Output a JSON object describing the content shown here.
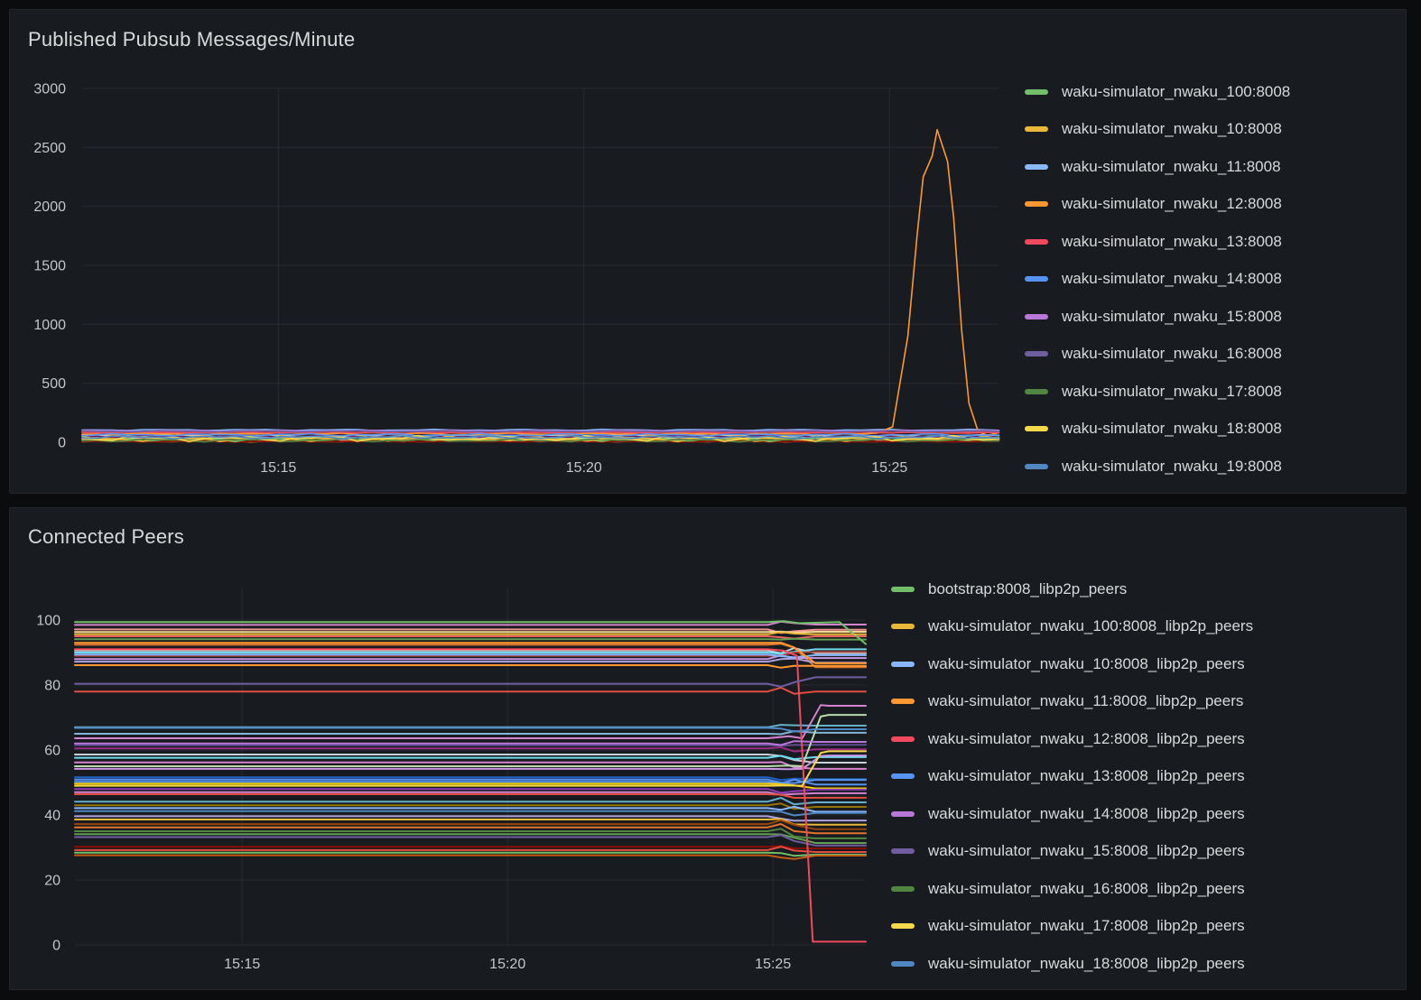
{
  "chart_data": [
    {
      "id": "published-pubsub",
      "type": "line",
      "title": "Published Pubsub Messages/Minute",
      "xlabel": "",
      "ylabel": "",
      "legend_position": "right",
      "grid": true,
      "ylim": [
        0,
        3000
      ],
      "y_ticks": [
        0,
        500,
        1000,
        1500,
        2000,
        2500,
        3000
      ],
      "x_ticks": [
        {
          "t": 15,
          "label": "15:15"
        },
        {
          "t": 20,
          "label": "15:20"
        },
        {
          "t": 25,
          "label": "15:25"
        }
      ],
      "x_range_minutes_after_1500": [
        11.79,
        26.79
      ],
      "description": "All series fluctuate in a noisy band between 0 and ~115 msg/min; waku-simulator_nwaku_12:8008 (orange) spikes to ~2650 shortly after 15:25 then returns to baseline.",
      "series": [
        {
          "name": "waku-simulator_nwaku_100:8008",
          "color": "#73BF69",
          "base": 25,
          "amp": 20,
          "phase": 0.3
        },
        {
          "name": "waku-simulator_nwaku_10:8008",
          "color": "#EAB839",
          "base": 28,
          "amp": 24,
          "phase": 1.1
        },
        {
          "name": "waku-simulator_nwaku_11:8008",
          "color": "#8AB8FF",
          "base": 104,
          "amp": 6,
          "phase": 2.2
        },
        {
          "name": "waku-simulator_nwaku_12:8008",
          "color": "#FF9830",
          "base": 70,
          "amp": 9,
          "phase": 3.0,
          "spike": [
            [
              25.05,
              130
            ],
            [
              25.3,
              900
            ],
            [
              25.45,
              1750
            ],
            [
              25.55,
              2250
            ],
            [
              25.7,
              2430
            ],
            [
              25.78,
              2650
            ],
            [
              25.95,
              2380
            ],
            [
              26.05,
              1900
            ],
            [
              26.18,
              950
            ],
            [
              26.3,
              330
            ],
            [
              26.45,
              90
            ]
          ]
        },
        {
          "name": "waku-simulator_nwaku_13:8008",
          "color": "#F2495C",
          "base": 86,
          "amp": 6,
          "phase": 4.1
        },
        {
          "name": "waku-simulator_nwaku_14:8008",
          "color": "#5794F2",
          "base": 63,
          "amp": 12,
          "phase": 5.3
        },
        {
          "name": "waku-simulator_nwaku_15:8008",
          "color": "#B877D9",
          "base": 97,
          "amp": 5,
          "phase": 0.9
        },
        {
          "name": "waku-simulator_nwaku_16:8008",
          "color": "#705DA0",
          "base": 93,
          "amp": 6,
          "phase": 1.8
        },
        {
          "name": "waku-simulator_nwaku_17:8008",
          "color": "#508642",
          "base": 16,
          "amp": 14,
          "phase": 2.7
        },
        {
          "name": "waku-simulator_nwaku_18:8008",
          "color": "#F5D94A",
          "base": 32,
          "amp": 26,
          "phase": 3.6
        },
        {
          "name": "waku-simulator_nwaku_19:8008",
          "color": "#4E87C1",
          "base": 42,
          "amp": 14,
          "phase": 4.8
        }
      ],
      "extra_series": [
        {
          "color": "#E24D42",
          "base": 79,
          "amp": 6,
          "phase": 0.5
        },
        {
          "color": "#C7D0D9",
          "base": 56,
          "amp": 9,
          "phase": 1.5
        },
        {
          "color": "#64B0C8",
          "base": 36,
          "amp": 16,
          "phase": 2.5
        },
        {
          "color": "#967302",
          "base": 20,
          "amp": 18,
          "phase": 3.5
        },
        {
          "color": "#F29191",
          "base": 30,
          "amp": 20,
          "phase": 4.5
        },
        {
          "color": "#C15C17",
          "base": 10,
          "amp": 9,
          "phase": 5.5
        },
        {
          "color": "#890F02",
          "base": 6,
          "amp": 5,
          "phase": 0.2
        },
        {
          "color": "#B7DBAB",
          "base": 45,
          "amp": 18,
          "phase": 1.9
        },
        {
          "color": "#6D1F62",
          "base": 50,
          "amp": 12,
          "phase": 2.9
        }
      ]
    },
    {
      "id": "connected-peers",
      "type": "line",
      "title": "Connected Peers",
      "xlabel": "",
      "ylabel": "",
      "legend_position": "right",
      "grid": true,
      "ylim": [
        0,
        110
      ],
      "y_ticks": [
        0,
        20,
        40,
        60,
        80,
        100
      ],
      "x_ticks": [
        {
          "t": 15,
          "label": "15:15"
        },
        {
          "t": 20,
          "label": "15:20"
        },
        {
          "t": 25,
          "label": "15:25"
        }
      ],
      "x_range_minutes_after_1500": [
        11.85,
        26.75
      ],
      "description": "Roughly 50 flat peer-count lines between ~27 and ~99.5; around 15:25 the lines perturb and step to new values; one red series drops to ~1; two lines rise (~55 to 71 and ~63 to 74); green bootstrap declines from 99.4 to ~93 at the right edge.",
      "ramp_legend": {
        "0": "step-at-15:25.5",
        "1": "late-decline-after-15:26.3",
        "2": "drop-to-floor",
        "3": "rise-after-15:25.5"
      },
      "series": [
        {
          "name": "bootstrap:8008_libp2p_peers",
          "color": "#73BF69",
          "start": 99.4,
          "end": 92.6,
          "ramp": 1
        },
        {
          "name": "waku-simulator_nwaku_100:8008_libp2p_peers",
          "color": "#EAB839",
          "start": 95.6,
          "end": 95.6,
          "ramp": 0
        },
        {
          "name": "waku-simulator_nwaku_10:8008_libp2p_peers",
          "color": "#8AB8FF",
          "start": 89.4,
          "end": 89.2,
          "ramp": 0
        },
        {
          "name": "waku-simulator_nwaku_11:8008_libp2p_peers",
          "color": "#FF9830",
          "start": 93.0,
          "end": 86.7,
          "ramp": 0
        },
        {
          "name": "waku-simulator_nwaku_12:8008_libp2p_peers",
          "color": "#F2495C",
          "start": 91.0,
          "end": 1.0,
          "ramp": 2
        },
        {
          "name": "waku-simulator_nwaku_13:8008_libp2p_peers",
          "color": "#5794F2",
          "start": 50.9,
          "end": 50.8,
          "ramp": 0
        },
        {
          "name": "waku-simulator_nwaku_14:8008_libp2p_peers",
          "color": "#B877D9",
          "start": 62.0,
          "end": 62.5,
          "ramp": 0
        },
        {
          "name": "waku-simulator_nwaku_15:8008_libp2p_peers",
          "color": "#705DA0",
          "start": 80.4,
          "end": 82.4,
          "ramp": 0
        },
        {
          "name": "waku-simulator_nwaku_16:8008_libp2p_peers",
          "color": "#508642",
          "start": 35.0,
          "end": 32.8,
          "ramp": 0
        },
        {
          "name": "waku-simulator_nwaku_17:8008_libp2p_peers",
          "color": "#F5D94A",
          "start": 49.0,
          "end": 59.6,
          "ramp": 3
        },
        {
          "name": "waku-simulator_nwaku_18:8008_libp2p_peers",
          "color": "#4E87C1",
          "start": 66.8,
          "end": 66.4,
          "ramp": 0
        }
      ],
      "palette": [
        "#73BF69",
        "#EAB839",
        "#8AB8FF",
        "#FF9830",
        "#F2495C",
        "#5794F2",
        "#B877D9",
        "#705DA0",
        "#508642",
        "#F5D94A",
        "#4E87C1",
        "#D683CE",
        "#F29191",
        "#F4D598",
        "#EA6460",
        "#629E51",
        "#E0752D",
        "#C7D0D9",
        "#70DBED",
        "#A8433B",
        "#CA95E5",
        "#AEA2E0",
        "#E24D42",
        "#64B0C8",
        "#614D93",
        "#962D82",
        "#82B5D8",
        "#B7DBAB",
        "#1F60C4",
        "#8F3BB8",
        "#967302",
        "#99440A",
        "#890F02",
        "#C15C17",
        "#F2CC0C"
      ],
      "extra_series": [
        [
          98.5,
          98.6,
          11
        ],
        [
          97.1,
          97.0,
          12
        ],
        [
          96.3,
          96.4,
          13
        ],
        [
          95.0,
          95.0,
          14
        ],
        [
          94.1,
          94.0,
          15
        ],
        [
          92.4,
          85.5,
          16
        ],
        [
          90.6,
          89.8,
          17
        ],
        [
          90.0,
          91.0,
          18
        ],
        [
          89.0,
          90.2,
          19
        ],
        [
          88.0,
          88.3,
          20
        ],
        [
          87.2,
          86.9,
          21
        ],
        [
          86.1,
          85.9,
          3
        ],
        [
          78.0,
          78.0,
          22
        ],
        [
          67.0,
          67.5,
          23
        ],
        [
          65.0,
          65.3,
          26
        ],
        [
          63.6,
          73.6,
          11,
          3
        ],
        [
          61.5,
          61.6,
          24
        ],
        [
          60.5,
          60.2,
          25
        ],
        [
          58.6,
          56.1,
          17
        ],
        [
          57.6,
          57.8,
          18
        ],
        [
          56.2,
          54.2,
          11
        ],
        [
          55.0,
          70.8,
          27,
          3
        ],
        [
          54.2,
          58.3,
          20,
          3
        ],
        [
          51.6,
          51.0,
          28
        ],
        [
          50.2,
          49.4,
          5
        ],
        [
          49.6,
          48.2,
          34
        ],
        [
          48.0,
          47.8,
          29
        ],
        [
          47.0,
          46.7,
          11
        ],
        [
          46.4,
          45.3,
          22
        ],
        [
          44.1,
          43.9,
          23
        ],
        [
          43.0,
          42.5,
          30
        ],
        [
          42.1,
          41.0,
          2
        ],
        [
          41.2,
          40.6,
          10
        ],
        [
          39.6,
          38.3,
          21
        ],
        [
          38.6,
          37.0,
          1
        ],
        [
          37.2,
          35.6,
          31
        ],
        [
          36.2,
          34.4,
          16
        ],
        [
          34.1,
          31.4,
          15
        ],
        [
          33.2,
          30.6,
          7
        ],
        [
          30.2,
          29.7,
          32
        ],
        [
          29.2,
          28.6,
          22
        ],
        [
          28.4,
          27.8,
          0
        ],
        [
          27.6,
          27.5,
          33
        ]
      ]
    }
  ],
  "theme": {
    "page_bg": "#0b0c0e",
    "panel_bg": "#181b1f",
    "panel_border": "#25262b",
    "grid_color": "rgba(204,204,220,0.09)",
    "tick_text": "#c5c6ca",
    "title_text": "#d8d9da",
    "legend_text": "#d8d9da"
  }
}
